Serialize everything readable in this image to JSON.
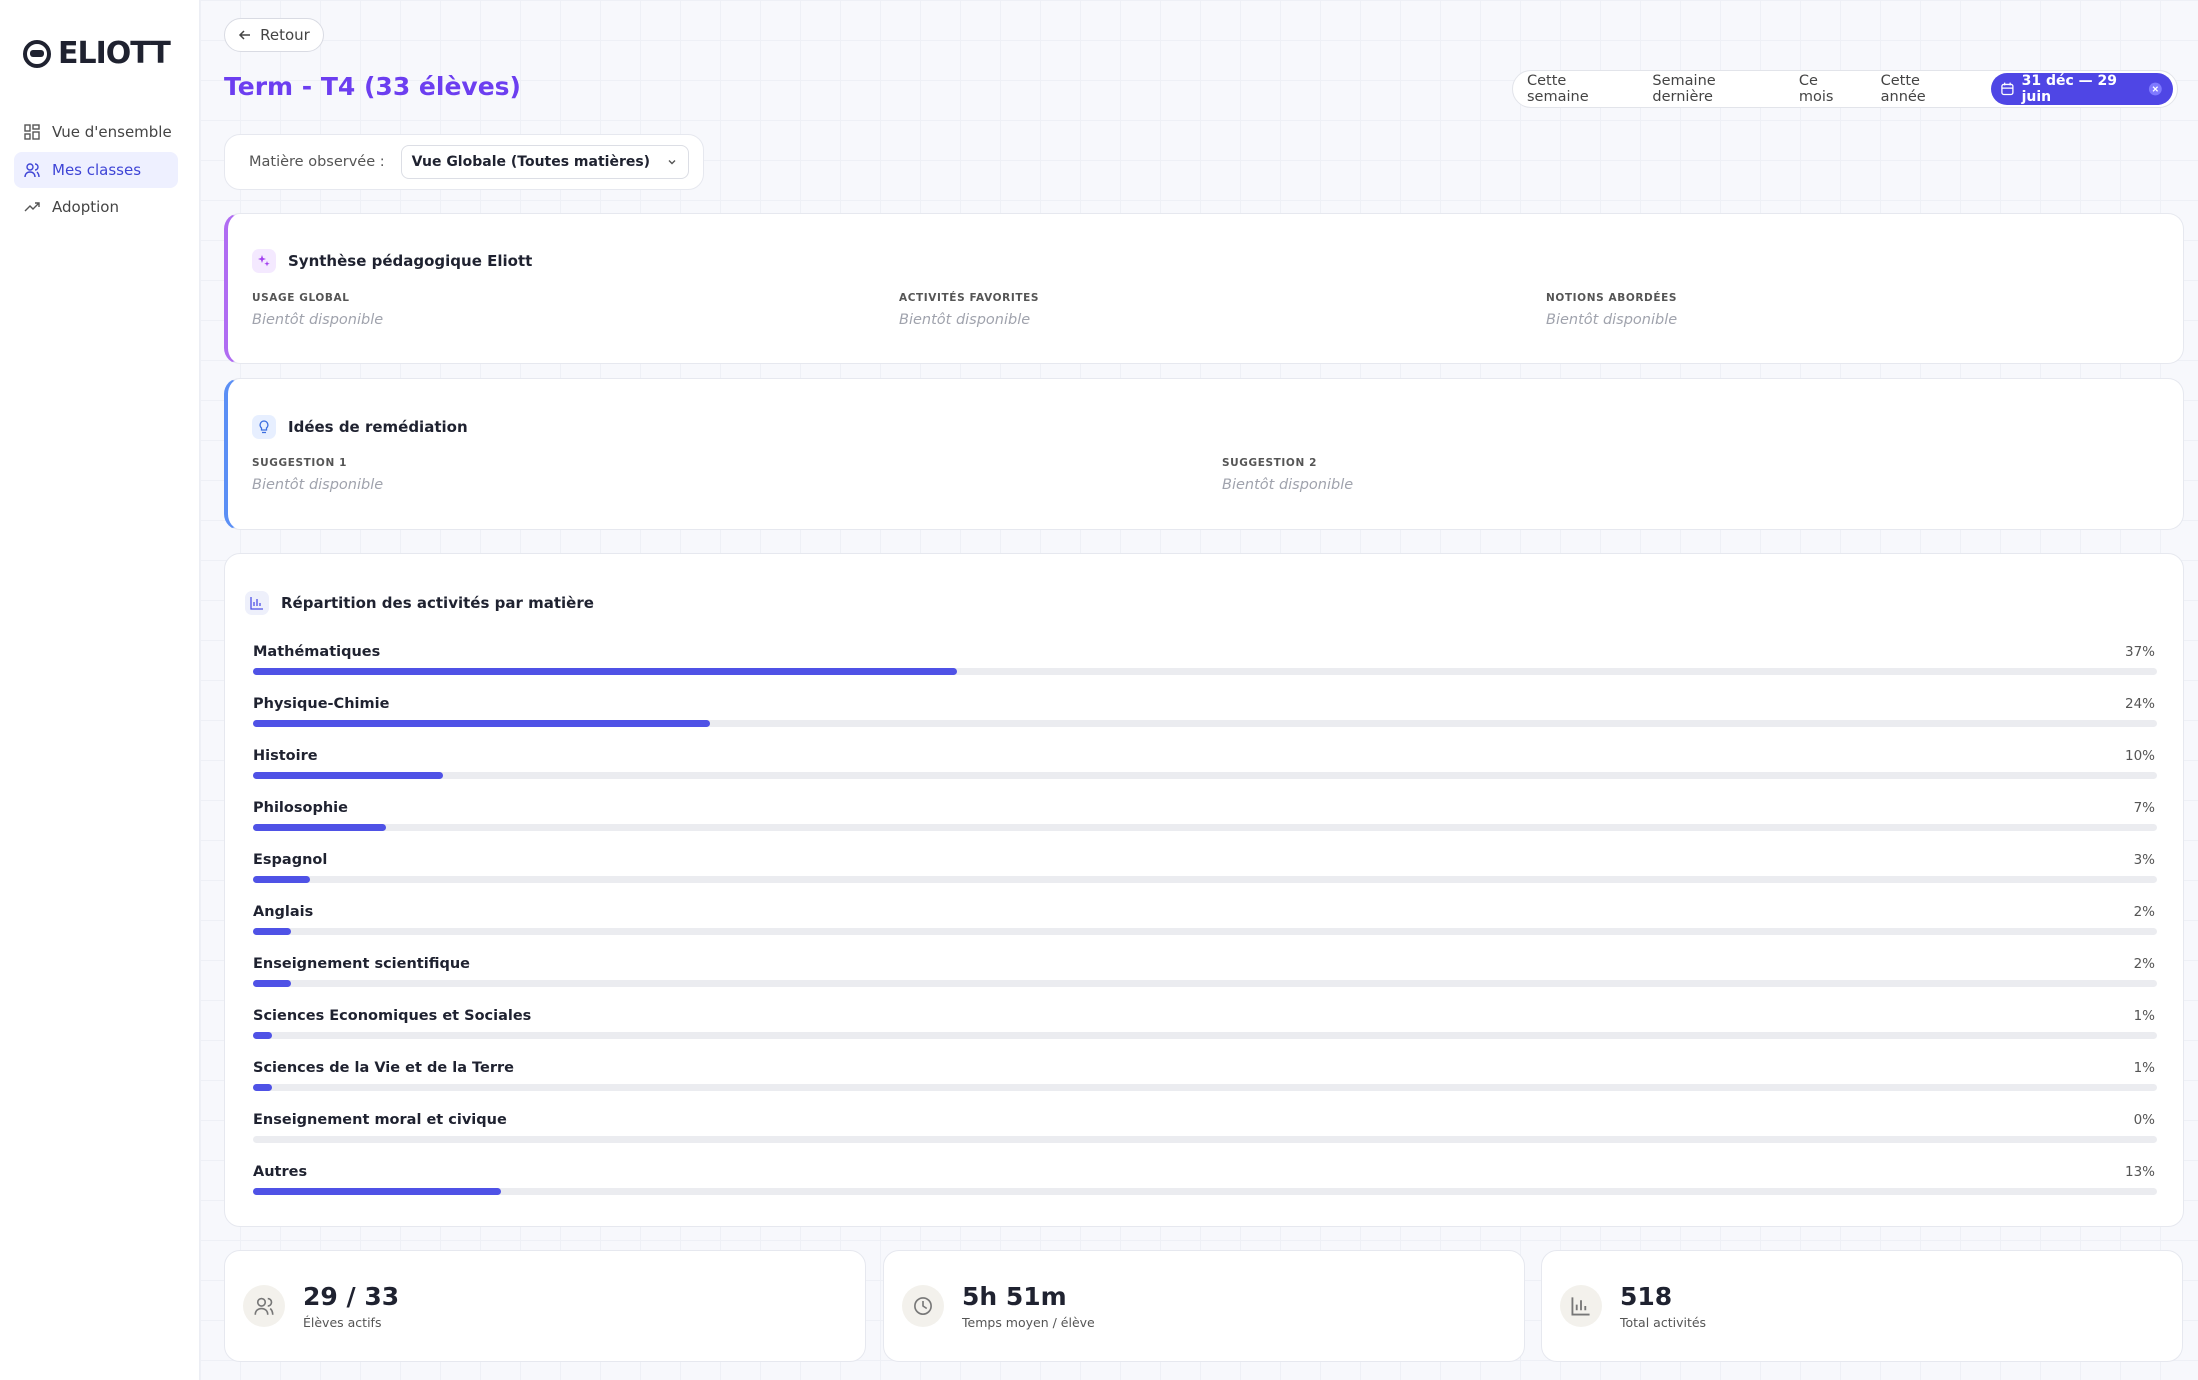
{
  "brand": "ELIOTT",
  "nav": [
    "Vue d'ensemble",
    "Mes classes",
    "Adoption"
  ],
  "back": "Retour",
  "page_title": "Term - T4 (33 élèves)",
  "periods": [
    "Cette semaine",
    "Semaine dernière",
    "Ce mois",
    "Cette année"
  ],
  "active_period": "31 déc — 29 juin",
  "subject_filter": {
    "label": "Matière observée :",
    "value": "Vue Globale (Toutes matières)"
  },
  "synthesis": {
    "title": "Synthèse pédagogique Eliott",
    "fields": [
      {
        "label": "USAGE GLOBAL",
        "value": "Bientôt disponible"
      },
      {
        "label": "ACTIVITÉS FAVORITES",
        "value": "Bientôt disponible"
      },
      {
        "label": "NOTIONS ABORDÉES",
        "value": "Bientôt disponible"
      }
    ]
  },
  "remediation": {
    "title": "Idées de remédiation",
    "fields": [
      {
        "label": "SUGGESTION 1",
        "value": "Bientôt disponible"
      },
      {
        "label": "SUGGESTION 2",
        "value": "Bientôt disponible"
      }
    ]
  },
  "chart_data": {
    "type": "bar",
    "orientation": "horizontal",
    "title": "Répartition des activités par matière",
    "categories": [
      "Mathématiques",
      "Physique-Chimie",
      "Histoire",
      "Philosophie",
      "Espagnol",
      "Anglais",
      "Enseignement scientifique",
      "Sciences Economiques et Sociales",
      "Sciences de la Vie et de la Terre",
      "Enseignement moral et civique",
      "Autres"
    ],
    "values": [
      37,
      24,
      10,
      7,
      3,
      2,
      2,
      1,
      1,
      0,
      13
    ],
    "value_labels": [
      "37%",
      "24%",
      "10%",
      "7%",
      "3%",
      "2%",
      "2%",
      "1%",
      "1%",
      "0%",
      "13%"
    ],
    "xlim": [
      0,
      100
    ],
    "color": "#4f52e6"
  },
  "stats": [
    {
      "value": "29 / 33",
      "label": "Élèves actifs"
    },
    {
      "value": "5h 51m",
      "label": "Temps moyen / élève"
    },
    {
      "value": "518",
      "label": "Total activités"
    }
  ]
}
